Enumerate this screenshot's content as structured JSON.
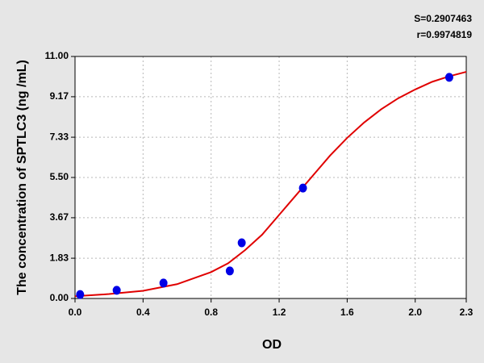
{
  "chart_data": {
    "type": "scatter",
    "x_label": "OD",
    "y_label": "The concentration of SPTLC3 (ng /mL)",
    "annotations": [
      "S=0.2907463",
      "r=0.9974819"
    ],
    "xlim": [
      0,
      2.3
    ],
    "xticks": [
      {
        "value": 0,
        "label": "0.0"
      },
      0.4,
      0.8,
      1.2,
      1.6,
      {
        "value": 2,
        "label": "2.0"
      },
      2.3
    ],
    "ylim": [
      0,
      11
    ],
    "yticks": [
      {
        "value": 0,
        "label": "0.00"
      },
      1.83,
      3.67,
      {
        "value": 5.5,
        "label": "5.50"
      },
      7.33,
      9.17,
      {
        "value": 11,
        "label": "11.00"
      }
    ],
    "grid": true,
    "points": {
      "color": "#0000e6",
      "x": [
        0.03,
        0.245,
        0.52,
        0.91,
        0.98,
        1.34,
        2.2
      ],
      "values": [
        0.18,
        0.37,
        0.7,
        1.25,
        2.53,
        5.02,
        10.05
      ]
    },
    "curve": {
      "type": "line",
      "color": "#e00000",
      "x": [
        0,
        0.2,
        0.4,
        0.6,
        0.8,
        0.9,
        1.0,
        1.1,
        1.2,
        1.3,
        1.4,
        1.5,
        1.6,
        1.7,
        1.8,
        1.9,
        2.0,
        2.1,
        2.2,
        2.3
      ],
      "values": [
        0.1,
        0.2,
        0.35,
        0.65,
        1.2,
        1.6,
        2.2,
        2.9,
        3.8,
        4.7,
        5.6,
        6.5,
        7.3,
        8.0,
        8.6,
        9.1,
        9.5,
        9.85,
        10.1,
        10.3
      ]
    }
  }
}
